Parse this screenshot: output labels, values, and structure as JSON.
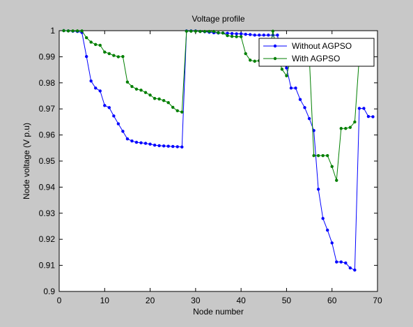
{
  "chart_data": {
    "type": "line",
    "title": "Voltage profile",
    "xlabel": "Node number",
    "ylabel": "Node voltage (V p.u)",
    "xlim": [
      0,
      70
    ],
    "ylim": [
      0.9,
      1.0
    ],
    "xticks": [
      0,
      10,
      20,
      30,
      40,
      50,
      60,
      70
    ],
    "yticks": [
      0.9,
      0.91,
      0.92,
      0.93,
      0.94,
      0.95,
      0.96,
      0.97,
      0.98,
      0.99,
      1.0
    ],
    "xtick_labels": [
      "0",
      "10",
      "20",
      "30",
      "40",
      "50",
      "60",
      "70"
    ],
    "ytick_labels": [
      "0.9",
      "0.91",
      "0.92",
      "0.93",
      "0.94",
      "0.95",
      "0.96",
      "0.97",
      "0.98",
      "0.99",
      "1"
    ],
    "grid": false,
    "legend_position": "top-right",
    "series": [
      {
        "name": "Without AGPSO",
        "color": "#0000ff",
        "x": [
          1,
          2,
          3,
          4,
          5,
          6,
          7,
          8,
          9,
          10,
          11,
          12,
          13,
          14,
          15,
          16,
          17,
          18,
          19,
          20,
          21,
          22,
          23,
          24,
          25,
          26,
          27,
          28,
          29,
          30,
          31,
          32,
          33,
          34,
          35,
          36,
          37,
          38,
          39,
          40,
          41,
          42,
          43,
          44,
          45,
          46,
          47,
          48,
          49,
          50,
          51,
          52,
          53,
          54,
          55,
          56,
          57,
          58,
          59,
          60,
          61,
          62,
          63,
          64,
          65,
          66,
          67,
          68,
          69
        ],
        "values": [
          1.0,
          0.9999,
          0.9998,
          0.9997,
          0.9993,
          0.9901,
          0.9807,
          0.978,
          0.9769,
          0.9713,
          0.9705,
          0.9673,
          0.9643,
          0.9614,
          0.9585,
          0.9577,
          0.9572,
          0.957,
          0.9568,
          0.9565,
          0.9561,
          0.9559,
          0.9558,
          0.9557,
          0.9556,
          0.9555,
          0.9554,
          0.9999,
          0.9999,
          0.9999,
          0.9997,
          0.9996,
          0.9994,
          0.9992,
          0.9991,
          0.9991,
          0.999,
          0.9989,
          0.9988,
          0.9988,
          0.9986,
          0.9985,
          0.9983,
          0.9983,
          0.9983,
          0.9983,
          0.9983,
          0.9983,
          0.9883,
          0.9857,
          0.978,
          0.978,
          0.9736,
          0.9705,
          0.9663,
          0.9617,
          0.9392,
          0.928,
          0.9235,
          0.9186,
          0.9113,
          0.9113,
          0.9109,
          0.909,
          0.9082,
          0.9702,
          0.9702,
          0.9671,
          0.967
        ]
      },
      {
        "name": "With AGPSO",
        "color": "#007f00",
        "x": [
          1,
          2,
          3,
          4,
          5,
          6,
          7,
          8,
          9,
          10,
          11,
          12,
          13,
          14,
          15,
          16,
          17,
          18,
          19,
          20,
          21,
          22,
          23,
          24,
          25,
          26,
          27,
          28,
          29,
          30,
          31,
          32,
          33,
          34,
          35,
          36,
          37,
          38,
          39,
          40,
          41,
          42,
          43,
          44,
          45,
          46,
          47,
          48,
          49,
          50,
          51,
          52,
          53,
          54,
          55,
          56,
          57,
          58,
          59,
          60,
          61,
          62,
          63,
          64,
          65,
          66,
          67
        ],
        "values": [
          1.0,
          0.9999,
          0.9999,
          0.9999,
          0.9999,
          0.9973,
          0.9956,
          0.9947,
          0.9944,
          0.9918,
          0.9912,
          0.9905,
          0.99,
          0.9901,
          0.9803,
          0.9786,
          0.9776,
          0.9772,
          0.9763,
          0.9753,
          0.974,
          0.9738,
          0.9732,
          0.9724,
          0.9706,
          0.9693,
          0.9688,
          0.9998,
          0.9998,
          0.9998,
          0.9997,
          0.9997,
          0.9997,
          0.9997,
          0.9992,
          0.9991,
          0.9981,
          0.9978,
          0.9977,
          0.9977,
          0.9912,
          0.9887,
          0.9883,
          0.9885,
          0.9886,
          0.9886,
          0.9998,
          0.9903,
          0.9852,
          0.9827,
          0.99,
          0.99,
          0.99,
          0.99,
          0.99,
          0.9521,
          0.9521,
          0.9521,
          0.9521,
          0.9479,
          0.9426,
          0.9625,
          0.9625,
          0.9629,
          0.965,
          0.99,
          0.99
        ]
      }
    ]
  }
}
